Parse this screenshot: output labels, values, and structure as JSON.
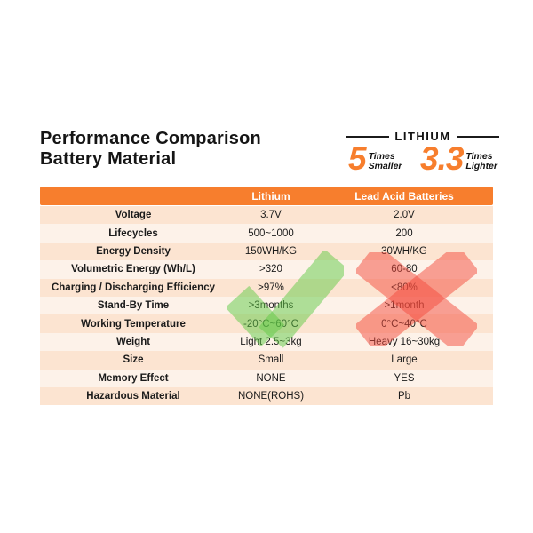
{
  "title": {
    "line1": "Performance Comparison",
    "line2": "Battery Material"
  },
  "badge": {
    "heading": "LITHIUM",
    "stats": [
      {
        "value": "5",
        "unit_line1": "Times",
        "unit_line2": "Smaller"
      },
      {
        "value": "3.3",
        "unit_line1": "Times",
        "unit_line2": "Lighter"
      }
    ]
  },
  "chart_data": {
    "type": "table",
    "title": "Performance Comparison Battery Material",
    "columns": [
      "",
      "Lithium",
      "Lead Acid Batteries"
    ],
    "rows": [
      {
        "label": "Voltage",
        "lithium": "3.7V",
        "lead_acid": "2.0V"
      },
      {
        "label": "Lifecycles",
        "lithium": "500~1000",
        "lead_acid": "200"
      },
      {
        "label": "Energy Density",
        "lithium": "150WH/KG",
        "lead_acid": "30WH/KG"
      },
      {
        "label": "Volumetric Energy (Wh/L)",
        "lithium": ">320",
        "lead_acid": "60-80"
      },
      {
        "label": "Charging / Discharging Efficiency",
        "lithium": ">97%",
        "lead_acid": "<80%"
      },
      {
        "label": "Stand-By Time",
        "lithium": ">3months",
        "lead_acid": ">1month"
      },
      {
        "label": "Working Temperature",
        "lithium": "-20°C~60°C",
        "lead_acid": "0°C~40°C"
      },
      {
        "label": "Weight",
        "lithium": "Light 2.5~3kg",
        "lead_acid": "Heavy 16~30kg"
      },
      {
        "label": "Size",
        "lithium": "Small",
        "lead_acid": "Large"
      },
      {
        "label": "Memory Effect",
        "lithium": "NONE",
        "lead_acid": "YES"
      },
      {
        "label": "Hazardous Material",
        "lithium": "NONE(ROHS)",
        "lead_acid": "Pb"
      }
    ],
    "annotations": {
      "lithium_column_mark": "check",
      "lead_acid_column_mark": "cross"
    }
  },
  "colors": {
    "accent_orange": "#f77e2d",
    "check_green": "#5fc946",
    "cross_red": "#f4493c",
    "row_odd": "#fce4d1",
    "row_even": "#fdf2e9",
    "header_text": "#ffffff",
    "stat_number": "#f77e2d"
  }
}
